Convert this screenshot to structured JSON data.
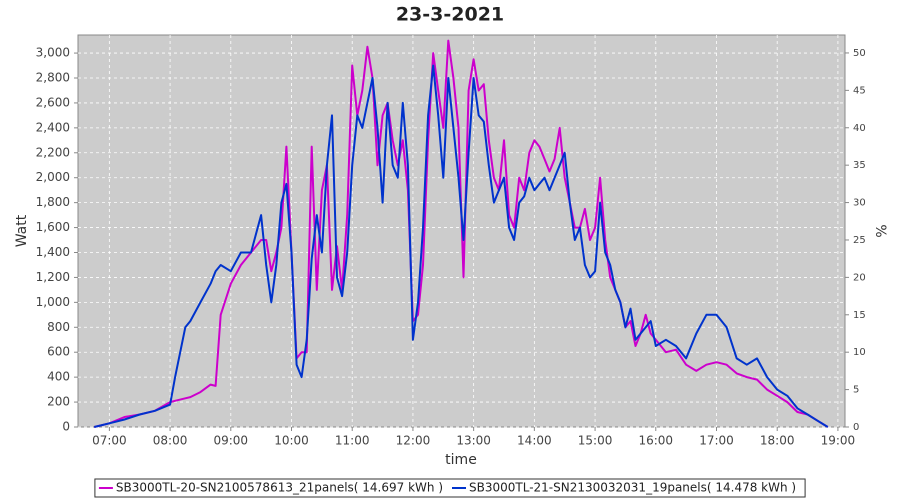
{
  "chart_data": {
    "type": "line",
    "title": "23-3-2021",
    "x_label": "time",
    "y_label": "Watt",
    "y2_label": "%",
    "grid": true,
    "background": "#cccccc",
    "legend": "bottom",
    "xlim": [
      "06:29",
      "19:07"
    ],
    "xticks": [
      "07:00",
      "08:00",
      "09:00",
      "10:00",
      "11:00",
      "12:00",
      "13:00",
      "14:00",
      "15:00",
      "16:00",
      "17:00",
      "18:00",
      "19:00"
    ],
    "ylim": [
      0,
      3145
    ],
    "yticks": [
      0,
      200,
      400,
      600,
      800,
      {
        "value": 1000,
        "label": "1,000"
      },
      {
        "value": 1200,
        "label": "1,200"
      },
      {
        "value": 1400,
        "label": "1,400"
      },
      {
        "value": 1600,
        "label": "1,600"
      },
      {
        "value": 1800,
        "label": "1,800"
      },
      {
        "value": 2000,
        "label": "2,000"
      },
      {
        "value": 2200,
        "label": "2,200"
      },
      {
        "value": 2400,
        "label": "2,400"
      },
      {
        "value": 2600,
        "label": "2,600"
      },
      {
        "value": 2800,
        "label": "2,800"
      },
      {
        "value": 3000,
        "label": "3,000"
      }
    ],
    "y2lim": [
      0,
      52.4
    ],
    "y2ticks": [
      0,
      5,
      10,
      15,
      20,
      25,
      30,
      35,
      40,
      45,
      50
    ],
    "x": [
      "06:45",
      "07:00",
      "07:15",
      "07:30",
      "07:45",
      "08:00",
      "08:05",
      "08:15",
      "08:20",
      "08:30",
      "08:40",
      "08:45",
      "08:50",
      "09:00",
      "09:10",
      "09:20",
      "09:30",
      "09:35",
      "09:40",
      "09:45",
      "09:50",
      "09:55",
      "10:00",
      "10:05",
      "10:10",
      "10:15",
      "10:20",
      "10:25",
      "10:30",
      "10:35",
      "10:40",
      "10:45",
      "10:50",
      "10:55",
      "11:00",
      "11:05",
      "11:10",
      "11:15",
      "11:20",
      "11:25",
      "11:30",
      "11:35",
      "11:40",
      "11:45",
      "11:50",
      "11:55",
      "12:00",
      "12:05",
      "12:10",
      "12:15",
      "12:20",
      "12:25",
      "12:30",
      "12:35",
      "12:40",
      "12:45",
      "12:50",
      "12:55",
      "13:00",
      "13:05",
      "13:10",
      "13:15",
      "13:20",
      "13:25",
      "13:30",
      "13:35",
      "13:40",
      "13:45",
      "13:50",
      "13:55",
      "14:00",
      "14:05",
      "14:10",
      "14:15",
      "14:20",
      "14:25",
      "14:30",
      "14:35",
      "14:40",
      "14:45",
      "14:50",
      "14:55",
      "15:00",
      "15:05",
      "15:10",
      "15:15",
      "15:20",
      "15:25",
      "15:30",
      "15:35",
      "15:40",
      "15:45",
      "15:50",
      "15:55",
      "16:00",
      "16:10",
      "16:20",
      "16:30",
      "16:40",
      "16:50",
      "17:00",
      "17:10",
      "17:20",
      "17:30",
      "17:40",
      "17:50",
      "18:00",
      "18:10",
      "18:20",
      "18:30",
      "18:40",
      "18:50"
    ],
    "series": [
      {
        "name": "SB3000TL-20-SN2100578613_21panels( 14.697 kWh )",
        "color": "#cc00cc",
        "values": [
          0,
          30,
          80,
          100,
          130,
          200,
          210,
          230,
          240,
          280,
          340,
          330,
          900,
          1150,
          1300,
          1400,
          1500,
          1500,
          1250,
          1400,
          1600,
          2250,
          1400,
          550,
          600,
          600,
          2250,
          1100,
          1900,
          2100,
          1100,
          1450,
          1100,
          1700,
          2900,
          2500,
          2700,
          3050,
          2800,
          2100,
          2500,
          2600,
          2300,
          2100,
          2300,
          1900,
          850,
          900,
          1300,
          2300,
          3000,
          2700,
          2400,
          3100,
          2800,
          2400,
          1200,
          2700,
          2950,
          2700,
          2750,
          2300,
          2000,
          1900,
          2300,
          1700,
          1600,
          2000,
          1900,
          2200,
          2300,
          2250,
          2150,
          2050,
          2150,
          2400,
          2000,
          1800,
          1600,
          1600,
          1750,
          1500,
          1600,
          2000,
          1500,
          1200,
          1100,
          1000,
          800,
          850,
          650,
          750,
          900,
          750,
          700,
          600,
          620,
          500,
          450,
          500,
          520,
          500,
          430,
          400,
          380,
          300,
          250,
          200,
          120,
          100,
          50,
          0
        ]
      },
      {
        "name": "SB3000TL-21-SN2130032031_19panels( 14.478 kWh )",
        "color": "#0033cc",
        "values": [
          0,
          30,
          60,
          100,
          130,
          180,
          400,
          800,
          850,
          1000,
          1150,
          1250,
          1300,
          1250,
          1400,
          1400,
          1700,
          1300,
          1000,
          1300,
          1800,
          1950,
          1400,
          500,
          400,
          700,
          1350,
          1700,
          1400,
          2100,
          2500,
          1200,
          1050,
          1400,
          2100,
          2500,
          2400,
          2600,
          2800,
          2400,
          1800,
          2600,
          2100,
          2000,
          2600,
          2100,
          700,
          1000,
          1600,
          2500,
          2900,
          2500,
          2000,
          2800,
          2400,
          2000,
          1500,
          2200,
          2800,
          2500,
          2450,
          2100,
          1800,
          1900,
          2000,
          1600,
          1500,
          1800,
          1850,
          2000,
          1900,
          1950,
          2000,
          1900,
          2000,
          2100,
          2200,
          1800,
          1500,
          1600,
          1300,
          1200,
          1250,
          1800,
          1400,
          1300,
          1100,
          1000,
          800,
          950,
          700,
          750,
          800,
          850,
          650,
          700,
          650,
          550,
          750,
          900,
          900,
          800,
          550,
          500,
          550,
          400,
          300,
          250,
          150,
          100,
          50,
          0
        ]
      }
    ]
  }
}
